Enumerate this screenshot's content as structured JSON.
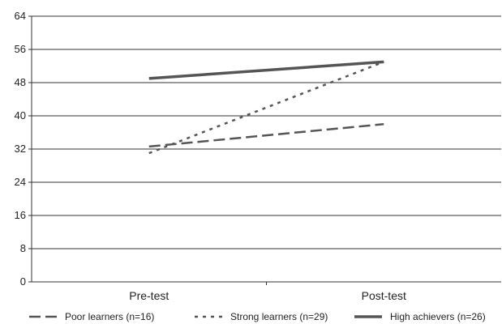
{
  "chart_data": {
    "type": "line",
    "categories": [
      "Pre-test",
      "Post-test"
    ],
    "ylim": [
      0,
      64
    ],
    "yticks": [
      0,
      8,
      16,
      24,
      32,
      40,
      48,
      56,
      64
    ],
    "grid": true,
    "legend_position": "bottom",
    "series": [
      {
        "name": "Poor learners (n=16)",
        "values": [
          32.6,
          38.0
        ],
        "style": "dashed",
        "color": "#555555"
      },
      {
        "name": "Strong learners (n=29)",
        "values": [
          31.0,
          53.0
        ],
        "style": "dotted",
        "color": "#555555"
      },
      {
        "name": "High achievers (n=26)",
        "values": [
          49.0,
          53.0
        ],
        "style": "solid",
        "color": "#555555"
      }
    ]
  }
}
